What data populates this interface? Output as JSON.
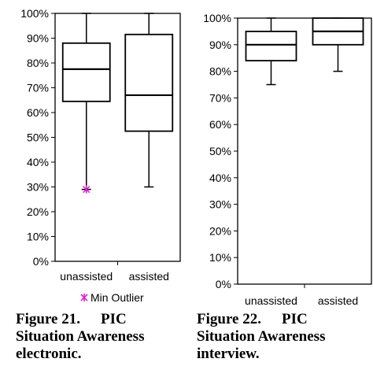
{
  "chart_data": [
    {
      "type": "box",
      "categories": [
        "unassisted",
        "assisted"
      ],
      "ylim": [
        0,
        100
      ],
      "yticks": [
        "0%",
        "10%",
        "20%",
        "30%",
        "40%",
        "50%",
        "60%",
        "70%",
        "80%",
        "90%",
        "100%"
      ],
      "boxes": [
        {
          "category": "unassisted",
          "min": 29,
          "q1": 64.5,
          "median": 77.5,
          "q3": 88,
          "max": 100
        },
        {
          "category": "assisted",
          "min": 30,
          "q1": 52.5,
          "median": 67,
          "q3": 91.5,
          "max": 100
        }
      ],
      "outliers": [
        {
          "category": "unassisted",
          "value": 29,
          "color": "#e020d0"
        }
      ],
      "legend": {
        "label": "Min Outlier",
        "position": "bottom",
        "marker_color": "#e020d0"
      },
      "caption": {
        "figure": "Figure 21.",
        "line1": "PIC",
        "line2": "Situation Awareness",
        "line3": "electronic."
      }
    },
    {
      "type": "box",
      "categories": [
        "unassisted",
        "assisted"
      ],
      "ylim": [
        0,
        100
      ],
      "yticks": [
        "0%",
        "10%",
        "20%",
        "30%",
        "40%",
        "50%",
        "60%",
        "70%",
        "80%",
        "90%",
        "100%"
      ],
      "boxes": [
        {
          "category": "unassisted",
          "min": 75,
          "q1": 84,
          "median": 90,
          "q3": 95,
          "max": 100
        },
        {
          "category": "assisted",
          "min": 80,
          "q1": 90,
          "median": 95,
          "q3": 100,
          "max": 100
        }
      ],
      "caption": {
        "figure": "Figure 22.",
        "line1": "PIC",
        "line2": "Situation Awareness",
        "line3": "interview."
      }
    }
  ]
}
